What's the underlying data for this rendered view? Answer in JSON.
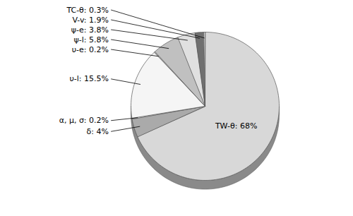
{
  "chart_data": {
    "type": "pie",
    "categories": [
      "TW-θ",
      "δ",
      "α, μ, σ",
      "υ-l",
      "υ-e",
      "ψ-l",
      "ψ-e",
      "V-v",
      "TC-θ"
    ],
    "values": [
      68.0,
      4.0,
      0.2,
      15.5,
      0.2,
      5.8,
      3.8,
      1.9,
      0.3
    ],
    "value_labels": [
      "TW-θ: 68%",
      "δ: 4%",
      "α, μ, σ: 0.2%",
      "υ-l: 15.5%",
      "υ-e: 0.2%",
      "ψ-l: 5.8%",
      "ψ-e: 3.8%",
      "V-v: 1.9%",
      "TC-θ: 0.3%"
    ],
    "colors": [
      "#d8d8d8",
      "#aaaaaa",
      "#e4e4e4",
      "#f5f5f5",
      "#c4c4c4",
      "#c0c0c0",
      "#e0e0e0",
      "#707070",
      "#d0d0d0"
    ],
    "data_labels": true
  }
}
